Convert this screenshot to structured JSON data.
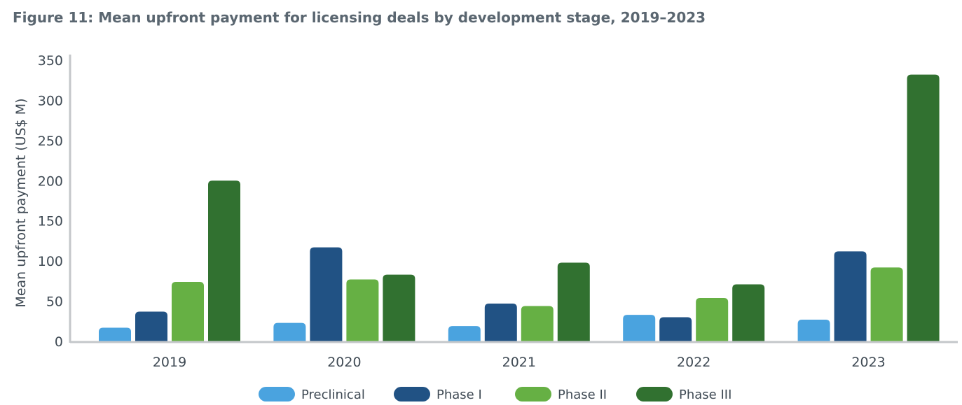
{
  "title": "Figure 11: Mean upfront payment for licensing deals by development stage, 2019–2023",
  "chart_data": {
    "type": "bar",
    "title": "Figure 11: Mean upfront payment for licensing deals by development stage, 2019–2023",
    "xlabel": "",
    "ylabel": "Mean upfront payment (US$ M)",
    "ylim": [
      0,
      350
    ],
    "yticks": [
      0,
      50,
      100,
      150,
      200,
      250,
      300,
      350
    ],
    "categories": [
      "2019",
      "2020",
      "2021",
      "2022",
      "2023"
    ],
    "series": [
      {
        "name": "Preclinical",
        "color": "#4aa3df",
        "values": [
          17,
          23,
          19,
          33,
          27
        ]
      },
      {
        "name": "Phase I",
        "color": "#215284",
        "values": [
          37,
          117,
          47,
          30,
          112
        ]
      },
      {
        "name": "Phase II",
        "color": "#66b044",
        "values": [
          74,
          77,
          44,
          54,
          92
        ]
      },
      {
        "name": "Phase III",
        "color": "#317130",
        "values": [
          200,
          83,
          98,
          71,
          332
        ]
      }
    ],
    "grid": false,
    "legend_position": "bottom"
  }
}
